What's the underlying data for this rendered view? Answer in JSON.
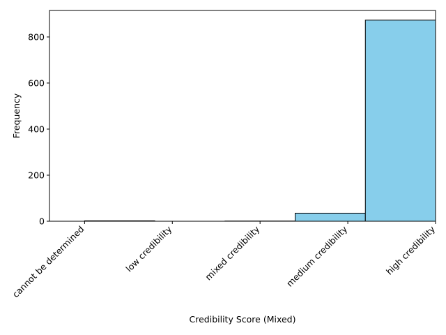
{
  "chart_data": {
    "type": "bar",
    "title": "",
    "xlabel": "Credibility Score (Mixed)",
    "ylabel": "Frequency",
    "categories": [
      "cannot be determined",
      "low credibility",
      "mixed credibility",
      "medium credibility",
      "high credibility"
    ],
    "bins": [
      {
        "start": 0,
        "end": 1,
        "value": 2
      },
      {
        "start": 1,
        "end": 2,
        "value": 0
      },
      {
        "start": 2,
        "end": 3,
        "value": 1
      },
      {
        "start": 3,
        "end": 4,
        "value": 35
      },
      {
        "start": 4,
        "end": 5,
        "value": 873
      }
    ],
    "xlim": [
      -0.5,
      5
    ],
    "ylim": [
      0,
      915
    ],
    "yticks": [
      0,
      200,
      400,
      600,
      800
    ],
    "xticks": [
      0,
      1.25,
      2.5,
      3.75,
      5
    ],
    "grid": false,
    "bar_color": "#87ceeb",
    "edge_color": "#000000"
  }
}
